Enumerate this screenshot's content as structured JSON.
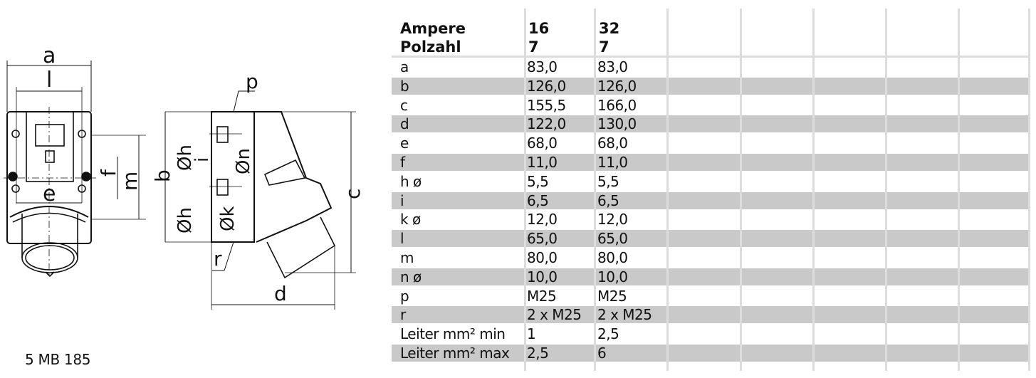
{
  "model": "5 MB 185",
  "drawing_labels": {
    "a": "a",
    "l": "l",
    "e": "e",
    "f": "f",
    "m": "m",
    "b": "b",
    "p": "p",
    "h1": "Øh",
    "i": "i",
    "n": "Øn",
    "k": "Øk",
    "h2": "Øh",
    "r": "r",
    "c": "c",
    "d": "d"
  },
  "table": {
    "header": {
      "label1": "Ampere",
      "label2": "Polzahl",
      "columns": [
        {
          "ampere": "16",
          "polzahl": "7"
        },
        {
          "ampere": "32",
          "polzahl": "7"
        }
      ]
    },
    "rows": [
      {
        "label": "a",
        "v1": "83,0",
        "v2": "83,0"
      },
      {
        "label": "b",
        "v1": "126,0",
        "v2": "126,0"
      },
      {
        "label": "c",
        "v1": "155,5",
        "v2": "166,0"
      },
      {
        "label": "d",
        "v1": "122,0",
        "v2": "130,0"
      },
      {
        "label": "e",
        "v1": "68,0",
        "v2": "68,0"
      },
      {
        "label": "f",
        "v1": "11,0",
        "v2": "11,0"
      },
      {
        "label": "h ø",
        "v1": "5,5",
        "v2": "5,5"
      },
      {
        "label": "i",
        "v1": "6,5",
        "v2": "6,5"
      },
      {
        "label": "k ø",
        "v1": "12,0",
        "v2": "12,0"
      },
      {
        "label": "l",
        "v1": "65,0",
        "v2": "65,0"
      },
      {
        "label": "m",
        "v1": "80,0",
        "v2": "80,0"
      },
      {
        "label": "n ø",
        "v1": "10,0",
        "v2": "10,0"
      },
      {
        "label": "p",
        "v1": "M25",
        "v2": "M25"
      },
      {
        "label": "r",
        "v1": "2 x M25",
        "v2": "2 x M25"
      },
      {
        "label": "Leiter mm² min",
        "v1": "1",
        "v2": "2,5"
      },
      {
        "label": "Leiter mm² max",
        "v1": "2,5",
        "v2": "6"
      }
    ]
  },
  "colors": {
    "row_stripe": "#c9c9c9",
    "grid": "#dcdcdc"
  }
}
